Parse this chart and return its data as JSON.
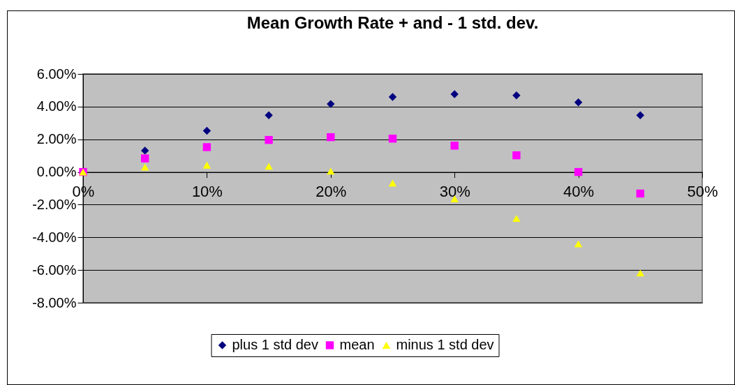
{
  "chart_data": {
    "type": "scatter",
    "title": "Mean Growth Rate + and - 1 std. dev.",
    "x": [
      0,
      5,
      10,
      15,
      20,
      25,
      30,
      35,
      40,
      45
    ],
    "series": [
      {
        "name": "plus 1 std dev",
        "color": "#000080",
        "marker": "diamond",
        "values": [
          null,
          1.31,
          2.52,
          3.47,
          4.16,
          4.59,
          4.76,
          4.69,
          4.26,
          3.47
        ]
      },
      {
        "name": "mean",
        "color": "#ff00ff",
        "marker": "square",
        "values": [
          0,
          0.83,
          1.52,
          1.96,
          2.13,
          2.04,
          1.61,
          1.02,
          0,
          -1.32
        ]
      },
      {
        "name": "minus 1 std dev",
        "color": "#ffff00",
        "marker": "triangle",
        "values": [
          0,
          0.3,
          0.42,
          0.35,
          0.05,
          -0.68,
          -1.64,
          -2.84,
          -4.4,
          -6.18
        ]
      }
    ],
    "xlim": [
      0,
      50
    ],
    "xticks": [
      {
        "value": 0,
        "label": "0%"
      },
      {
        "value": 10,
        "label": "10%"
      },
      {
        "value": 20,
        "label": "20%"
      },
      {
        "value": 30,
        "label": "30%"
      },
      {
        "value": 40,
        "label": "40%"
      },
      {
        "value": 50,
        "label": "50%"
      }
    ],
    "ylim": [
      -8,
      6
    ],
    "yticks": [
      {
        "value": -8,
        "label": "-8.00%"
      },
      {
        "value": -6,
        "label": "-6.00%"
      },
      {
        "value": -4,
        "label": "-4.00%"
      },
      {
        "value": -2,
        "label": "-2.00%"
      },
      {
        "value": 0,
        "label": "0.00%"
      },
      {
        "value": 2,
        "label": "2.00%"
      },
      {
        "value": 4,
        "label": "4.00%"
      },
      {
        "value": 6,
        "label": "6.00%"
      }
    ],
    "grid": "y",
    "legend": "bottom"
  }
}
